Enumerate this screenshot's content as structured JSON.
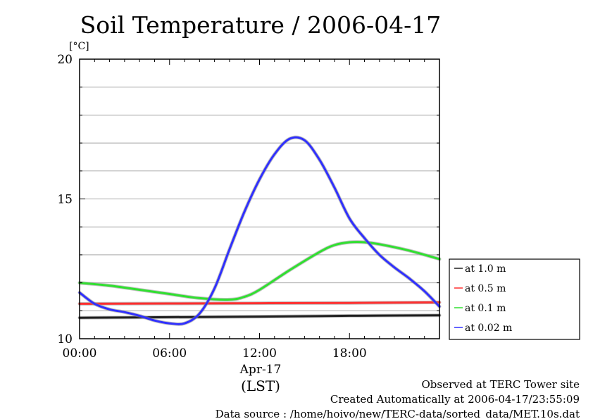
{
  "chart_data": {
    "type": "line",
    "title": "Soil Temperature / 2006-04-17",
    "ylabel": "[°C]",
    "ylim": [
      10,
      20
    ],
    "yticks": [
      10,
      15,
      20
    ],
    "xlim_hours": [
      0,
      24
    ],
    "xticks": [
      {
        "hour": 0,
        "label": "00:00"
      },
      {
        "hour": 6,
        "label": "06:00"
      },
      {
        "hour": 12,
        "label": "12:00"
      },
      {
        "hour": 18,
        "label": "18:00"
      }
    ],
    "xlabel_date": "Apr-17",
    "xlabel_tz": "(LST)",
    "grid": true,
    "legend_position": "right",
    "series": [
      {
        "name": "at 1.0 m",
        "color": "#202020",
        "x": [
          0,
          6,
          12,
          18,
          24
        ],
        "y": [
          10.75,
          10.77,
          10.79,
          10.82,
          10.84
        ]
      },
      {
        "name": "at 0.5 m",
        "color": "#ff3030",
        "x": [
          0,
          6,
          12,
          18,
          24
        ],
        "y": [
          11.25,
          11.26,
          11.27,
          11.28,
          11.3
        ]
      },
      {
        "name": "at 0.1 m",
        "color": "#30e030",
        "x": [
          0,
          2,
          4,
          6,
          8,
          10,
          11,
          12,
          14,
          16,
          17,
          18,
          19,
          20,
          22,
          24
        ],
        "y": [
          12.0,
          11.9,
          11.75,
          11.6,
          11.45,
          11.4,
          11.5,
          11.75,
          12.45,
          13.1,
          13.35,
          13.45,
          13.45,
          13.38,
          13.15,
          12.85
        ]
      },
      {
        "name": "at 0.02 m",
        "color": "#3030ff",
        "x": [
          0,
          1,
          2,
          3,
          4,
          5,
          6,
          7,
          8,
          9,
          10,
          11,
          12,
          13,
          14,
          15,
          16,
          17,
          18,
          19,
          20,
          21,
          22,
          23,
          24
        ],
        "y": [
          11.65,
          11.25,
          11.05,
          10.95,
          10.82,
          10.65,
          10.55,
          10.55,
          10.9,
          11.8,
          13.2,
          14.55,
          15.7,
          16.6,
          17.15,
          17.1,
          16.4,
          15.4,
          14.3,
          13.6,
          13.0,
          12.55,
          12.15,
          11.7,
          11.15
        ]
      }
    ]
  },
  "footer": {
    "line1": "Observed at TERC Tower site",
    "line2": "Created Automatically at 2006-04-17/23:55:09",
    "line3": "Data source : /home/hoivo/new/TERC-data/sorted_data/MET.10s.dat"
  }
}
